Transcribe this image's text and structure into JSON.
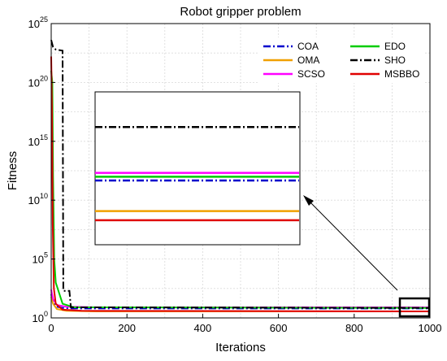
{
  "chart_data": {
    "type": "line",
    "title": "Robot gripper problem",
    "xlabel": "Iterations",
    "ylabel": "Fitness",
    "xlim": [
      0,
      1000
    ],
    "ylim_log10": [
      0,
      25
    ],
    "yscale": "log",
    "grid": true,
    "legend_position": "top-right",
    "x_ticks": [
      "0",
      "200",
      "400",
      "600",
      "800",
      "1000"
    ],
    "y_ticks": [
      {
        "base": "10",
        "exp": "0"
      },
      {
        "base": "10",
        "exp": "5"
      },
      {
        "base": "10",
        "exp": "10"
      },
      {
        "base": "10",
        "exp": "15"
      },
      {
        "base": "10",
        "exp": "20"
      },
      {
        "base": "10",
        "exp": "25"
      }
    ],
    "series": [
      {
        "name": "COA",
        "color": "#0000cc",
        "dash": "dashdot",
        "log10_points": [
          [
            0,
            2.0
          ],
          [
            5,
            1.4
          ],
          [
            15,
            0.95
          ],
          [
            30,
            0.85
          ],
          [
            60,
            0.8
          ],
          [
            1000,
            0.8
          ]
        ]
      },
      {
        "name": "OMA",
        "color": "#f0a000",
        "dash": "solid",
        "log10_points": [
          [
            0,
            1.8
          ],
          [
            5,
            1.2
          ],
          [
            15,
            0.75
          ],
          [
            40,
            0.6
          ],
          [
            120,
            0.55
          ],
          [
            1000,
            0.55
          ]
        ]
      },
      {
        "name": "SCSO",
        "color": "#ff00ff",
        "dash": "solid",
        "log10_points": [
          [
            0,
            2.4
          ],
          [
            5,
            1.6
          ],
          [
            15,
            1.1
          ],
          [
            40,
            0.95
          ],
          [
            120,
            0.9
          ],
          [
            1000,
            0.9
          ]
        ]
      },
      {
        "name": "EDO",
        "color": "#00cc00",
        "dash": "solid",
        "log10_points": [
          [
            0,
            21.0
          ],
          [
            3,
            20.0
          ],
          [
            5,
            12.0
          ],
          [
            8,
            5.0
          ],
          [
            12,
            3.0
          ],
          [
            20,
            2.2
          ],
          [
            30,
            1.2
          ],
          [
            60,
            0.9
          ],
          [
            1000,
            0.85
          ]
        ]
      },
      {
        "name": "SHO",
        "color": "#000000",
        "dash": "dashdot",
        "log10_points": [
          [
            0,
            23.6
          ],
          [
            5,
            23.0
          ],
          [
            12,
            22.8
          ],
          [
            30,
            22.7
          ],
          [
            32,
            2.3
          ],
          [
            48,
            2.3
          ],
          [
            52,
            0.9
          ],
          [
            100,
            0.9
          ],
          [
            1000,
            0.85
          ]
        ]
      },
      {
        "name": "MSBBO",
        "color": "#e00000",
        "dash": "solid",
        "log10_points": [
          [
            0,
            22.2
          ],
          [
            2,
            18.0
          ],
          [
            4,
            8.0
          ],
          [
            7,
            2.5
          ],
          [
            12,
            1.2
          ],
          [
            30,
            0.7
          ],
          [
            80,
            0.6
          ],
          [
            1000,
            0.55
          ]
        ]
      }
    ],
    "inset": {
      "description_lines": [
        {
          "series": "SHO",
          "level": 0.23
        },
        {
          "series": "SCSO",
          "level": 0.53
        },
        {
          "series": "EDO",
          "level": 0.555
        },
        {
          "series": "COA",
          "level": 0.58
        },
        {
          "series": "OMA",
          "level": 0.78
        },
        {
          "series": "MSBBO",
          "level": 0.84
        }
      ]
    }
  }
}
